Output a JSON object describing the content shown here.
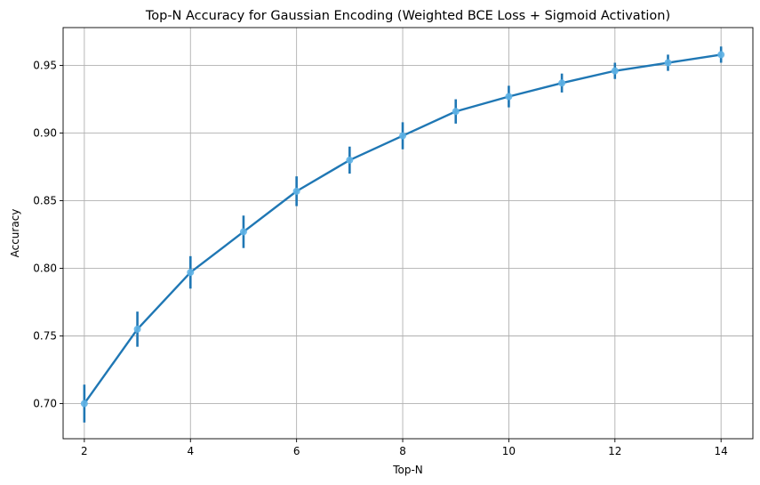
{
  "chart_data": {
    "type": "line",
    "title": "Top-N Accuracy for Gaussian Encoding (Weighted BCE Loss + Sigmoid Activation)",
    "xlabel": "Top-N",
    "ylabel": "Accuracy",
    "xlim": [
      1.6,
      14.6
    ],
    "ylim": [
      0.674,
      0.978
    ],
    "xticks": [
      2,
      4,
      6,
      8,
      10,
      12,
      14
    ],
    "yticks": [
      0.7,
      0.75,
      0.8,
      0.85,
      0.9,
      0.95
    ],
    "ytick_labels": [
      "0.70",
      "0.75",
      "0.80",
      "0.85",
      "0.90",
      "0.95"
    ],
    "grid": true,
    "series": [
      {
        "name": "Accuracy",
        "line_color": "#1f77b4",
        "marker_color": "#5fb3e6",
        "x": [
          2,
          3,
          4,
          5,
          6,
          7,
          8,
          9,
          10,
          11,
          12,
          13,
          14
        ],
        "values": [
          0.7,
          0.755,
          0.797,
          0.827,
          0.857,
          0.88,
          0.898,
          0.916,
          0.927,
          0.937,
          0.946,
          0.952,
          0.958
        ],
        "error": [
          0.014,
          0.013,
          0.012,
          0.012,
          0.011,
          0.01,
          0.01,
          0.009,
          0.008,
          0.007,
          0.006,
          0.006,
          0.006
        ]
      }
    ]
  }
}
